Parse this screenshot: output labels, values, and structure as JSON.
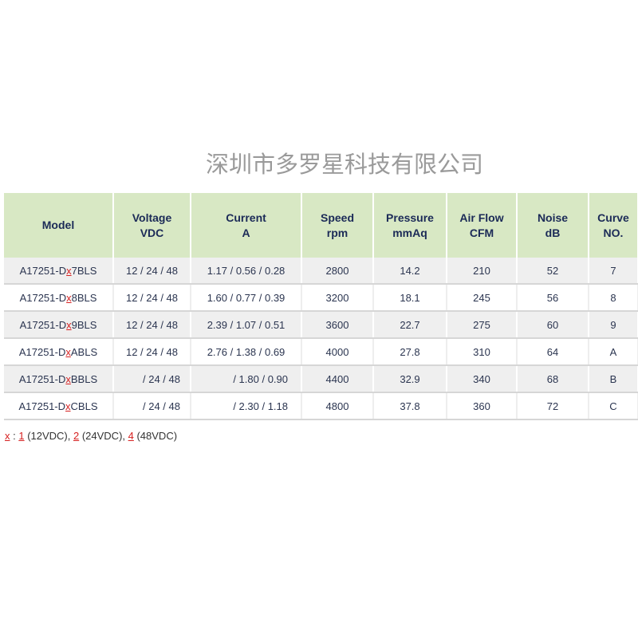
{
  "headers": [
    {
      "l1": "Model",
      "l2": ""
    },
    {
      "l1": "Voltage",
      "l2": "VDC"
    },
    {
      "l1": "Current",
      "l2": "A"
    },
    {
      "l1": "Speed",
      "l2": "rpm"
    },
    {
      "l1": "Pressure",
      "l2": "mmAq"
    },
    {
      "l1": "Air Flow",
      "l2": "CFM"
    },
    {
      "l1": "Noise",
      "l2": "dB"
    },
    {
      "l1": "Curve",
      "l2": "NO."
    }
  ],
  "rows": [
    {
      "prefix": "A17251-D",
      "x": "x",
      "suffix": "7BLS",
      "voltage": "12 / 24 / 48",
      "current": "1.17 / 0.56 / 0.28",
      "speed": "2800",
      "pressure": "14.2",
      "airflow": "210",
      "noise": "52",
      "curve": "7"
    },
    {
      "prefix": "A17251-D",
      "x": "x",
      "suffix": "8BLS",
      "voltage": "12 / 24 / 48",
      "current": "1.60 / 0.77 / 0.39",
      "speed": "3200",
      "pressure": "18.1",
      "airflow": "245",
      "noise": "56",
      "curve": "8"
    },
    {
      "prefix": "A17251-D",
      "x": "x",
      "suffix": "9BLS",
      "voltage": "12 / 24 / 48",
      "current": "2.39 / 1.07 / 0.51",
      "speed": "3600",
      "pressure": "22.7",
      "airflow": "275",
      "noise": "60",
      "curve": "9"
    },
    {
      "prefix": "A17251-D",
      "x": "x",
      "suffix": "ABLS",
      "voltage": "12 / 24 / 48",
      "current": "2.76 / 1.38 / 0.69",
      "speed": "4000",
      "pressure": "27.8",
      "airflow": "310",
      "noise": "64",
      "curve": "A"
    },
    {
      "prefix": "A17251-D",
      "x": "x",
      "suffix": "BBLS",
      "voltage": "/ 24 / 48",
      "current": "/ 1.80 / 0.90",
      "speed": "4400",
      "pressure": "32.9",
      "airflow": "340",
      "noise": "68",
      "curve": "B"
    },
    {
      "prefix": "A17251-D",
      "x": "x",
      "suffix": "CBLS",
      "voltage": "/ 24 / 48",
      "current": "/ 2.30 / 1.18",
      "speed": "4800",
      "pressure": "37.8",
      "airflow": "360",
      "noise": "72",
      "curve": "C"
    }
  ],
  "watermark": "深圳市多罗星科技有限公司",
  "note": {
    "x": "x",
    "sep": " : ",
    "v1": "1",
    "t1": " (12VDC), ",
    "v2": "2",
    "t2": " (24VDC), ",
    "v4": "4",
    "t4": " (48VDC)"
  },
  "colors": {
    "header_bg": "#d8e8c4",
    "header_text": "#1b2a57",
    "accent_red": "#d62020"
  }
}
